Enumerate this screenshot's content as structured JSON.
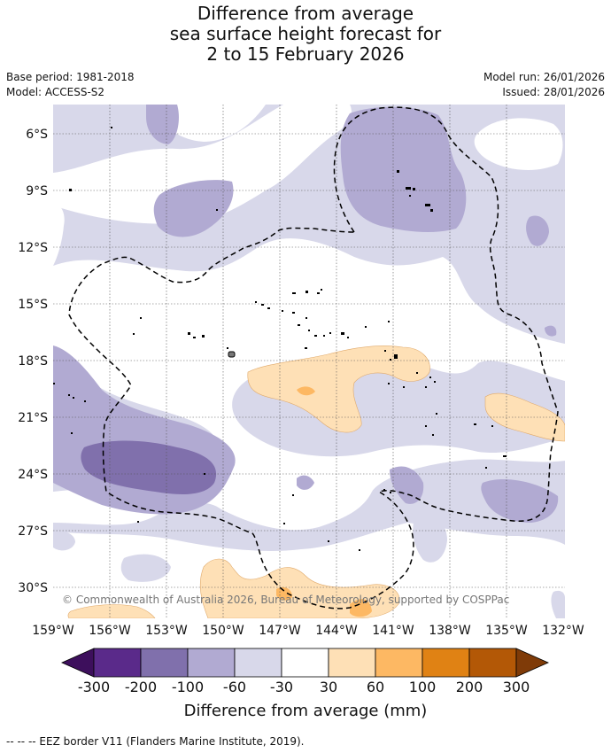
{
  "title": {
    "line1": "Difference from average",
    "line2": "sea surface height forecast for",
    "line3": "2 to 15 February 2026"
  },
  "meta": {
    "base_period": "Base period: 1981-2018",
    "model": "Model: ACCESS-S2",
    "model_run": "Model run: 26/01/2026",
    "issued": "Issued: 28/01/2026"
  },
  "map": {
    "lat_labels": [
      "6°S",
      "9°S",
      "12°S",
      "15°S",
      "18°S",
      "21°S",
      "24°S",
      "27°S",
      "30°S"
    ],
    "lon_labels": [
      "159°W",
      "156°W",
      "153°W",
      "150°W",
      "147°W",
      "144°W",
      "141°W",
      "138°W",
      "135°W",
      "132°W"
    ],
    "copyright": "© Commonwealth of Australia 2026, Bureau of Meteorology, supported by COSPPac",
    "colors": {
      "c_m300": "#3d0f5c",
      "c_m200": "#5a2a8a",
      "c_m100": "#8070ac",
      "c_m60": "#b1aad2",
      "c_m30": "#d8d8ea",
      "c_0": "#ffffff",
      "c_p30": "#fee0b6",
      "c_p60": "#fdb863",
      "c_p100": "#e08214",
      "c_p200": "#b35806",
      "c_p300": "#7f3b08"
    }
  },
  "colorbar": {
    "labels": [
      "-300",
      "-200",
      "-100",
      "-60",
      "-30",
      "30",
      "60",
      "100",
      "200",
      "300"
    ],
    "title": "Difference from average (mm)"
  },
  "footer": "--  --  -- EEZ border V11 (Flanders Marine Institute, 2019)."
}
